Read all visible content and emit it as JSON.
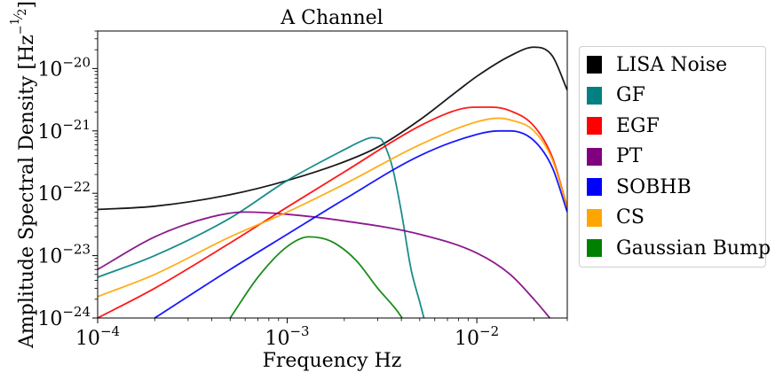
{
  "chart_data": {
    "type": "line",
    "title": "A Channel",
    "xlabel": "Frequency Hz",
    "ylabel": "Amplitude Spectral Density [Hz^-1/2]",
    "ylabel_main": "Amplitude Spectral Density [Hz",
    "ylabel_exp_num": "1",
    "ylabel_exp_den": "2",
    "ylabel_close": "]",
    "x_scale": "log",
    "y_scale": "log",
    "xlim": [
      0.0001,
      0.03
    ],
    "ylim": [
      1e-24,
      4e-20
    ],
    "x_ticks": [
      {
        "value": 0.0001,
        "base": "10",
        "exp": "−4"
      },
      {
        "value": 0.001,
        "base": "10",
        "exp": "−3"
      },
      {
        "value": 0.01,
        "base": "10",
        "exp": "−2"
      }
    ],
    "y_ticks": [
      {
        "value": 1e-24,
        "base": "10",
        "exp": "−24"
      },
      {
        "value": 1e-23,
        "base": "10",
        "exp": "−23"
      },
      {
        "value": 1e-22,
        "base": "10",
        "exp": "−22"
      },
      {
        "value": 1e-21,
        "base": "10",
        "exp": "−21"
      },
      {
        "value": 1e-20,
        "base": "10",
        "exp": "−20"
      }
    ],
    "grid": false,
    "legend_position": "outside-right",
    "series": [
      {
        "name": "LISA Noise",
        "color": "#000000",
        "x": [
          0.0001,
          0.0002,
          0.0005,
          0.001,
          0.002,
          0.003,
          0.005,
          0.008,
          0.01,
          0.015,
          0.02,
          0.025,
          0.03
        ],
        "y": [
          5.5e-23,
          6.2e-23,
          9.5e-23,
          1.6e-22,
          3.2e-22,
          5.5e-22,
          1.5e-21,
          4.5e-21,
          7.5e-21,
          1.6e-20,
          2.2e-20,
          1.6e-20,
          4.5e-21
        ]
      },
      {
        "name": "GF",
        "color": "#008080",
        "x": [
          0.0001,
          0.0002,
          0.0005,
          0.001,
          0.002,
          0.0025,
          0.0028,
          0.0031,
          0.0033,
          0.0036,
          0.004,
          0.0045,
          0.005,
          0.0055
        ],
        "y": [
          4.5e-24,
          1e-23,
          4e-23,
          1.6e-22,
          5e-22,
          7e-22,
          7.8e-22,
          7.5e-22,
          5.5e-22,
          2.5e-22,
          5e-23,
          6e-24,
          1.8e-24,
          6e-25
        ]
      },
      {
        "name": "EGF",
        "color": "#ff0000",
        "x": [
          0.0001,
          0.0002,
          0.0005,
          0.001,
          0.002,
          0.005,
          0.008,
          0.01,
          0.012,
          0.015,
          0.02,
          0.025,
          0.03
        ],
        "y": [
          1e-24,
          3e-24,
          1.6e-23,
          6e-23,
          2.2e-22,
          1.2e-21,
          2.2e-21,
          2.4e-21,
          2.4e-21,
          2.1e-21,
          1.2e-21,
          3.8e-22,
          6e-23
        ]
      },
      {
        "name": "PT",
        "color": "#800080",
        "x": [
          0.0001,
          0.0002,
          0.0004,
          0.0006,
          0.001,
          0.002,
          0.005,
          0.01,
          0.015,
          0.02,
          0.025
        ],
        "y": [
          6e-24,
          2e-23,
          4.2e-23,
          5e-23,
          4.6e-23,
          3.6e-23,
          2.2e-23,
          1.1e-23,
          5e-24,
          2e-24,
          9e-25
        ]
      },
      {
        "name": "SOBHB",
        "color": "#0000ff",
        "x": [
          0.0002,
          0.0005,
          0.001,
          0.002,
          0.005,
          0.01,
          0.013,
          0.015,
          0.02,
          0.025,
          0.03
        ],
        "y": [
          1e-24,
          6e-24,
          2.2e-23,
          8e-23,
          4e-22,
          8.8e-22,
          1e-21,
          1e-21,
          7e-22,
          2.6e-22,
          5e-23
        ]
      },
      {
        "name": "CS",
        "color": "#ffa500",
        "x": [
          0.0001,
          0.0002,
          0.0005,
          0.001,
          0.002,
          0.005,
          0.01,
          0.013,
          0.015,
          0.02,
          0.025,
          0.03
        ],
        "y": [
          2.2e-24,
          5e-24,
          2e-23,
          5e-23,
          1.4e-22,
          6e-22,
          1.4e-21,
          1.6e-21,
          1.5e-21,
          1e-21,
          3.5e-22,
          6e-23
        ]
      },
      {
        "name": "Gaussian Bump",
        "color": "#008000",
        "x": [
          0.0005,
          0.0007,
          0.001,
          0.0013,
          0.0017,
          0.0023,
          0.003,
          0.0038,
          0.0045
        ],
        "y": [
          1e-24,
          4.5e-24,
          1.4e-23,
          2e-23,
          1.7e-23,
          8.5e-24,
          3e-24,
          1.3e-24,
          6e-25
        ]
      }
    ]
  }
}
